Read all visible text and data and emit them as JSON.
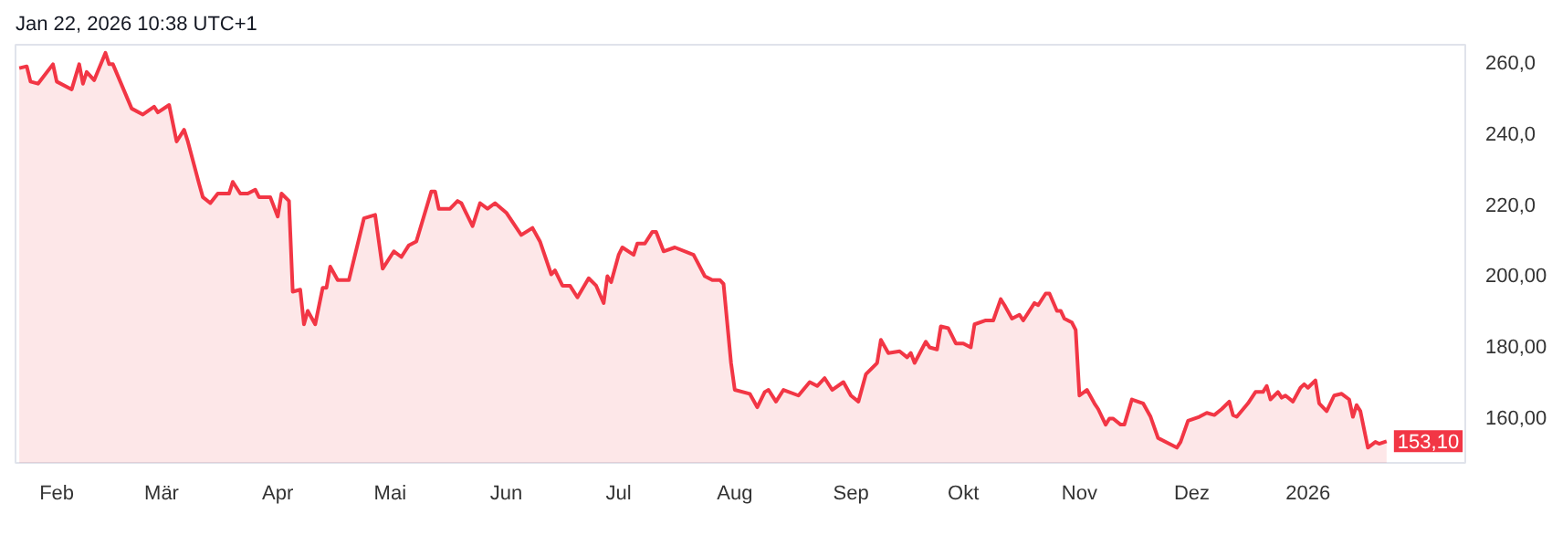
{
  "chart_data": {
    "type": "area",
    "title": "Jan 22, 2026 10:38 UTC+1",
    "x": [
      "2025-01-22",
      "2025-01-24",
      "2025-01-25",
      "2025-01-27",
      "2025-01-31",
      "2025-02-01",
      "2025-02-05",
      "2025-02-07",
      "2025-02-08",
      "2025-02-09",
      "2025-02-11",
      "2025-02-14",
      "2025-02-15",
      "2025-02-16",
      "2025-02-21",
      "2025-02-24",
      "2025-02-27",
      "2025-02-28",
      "2025-03-03",
      "2025-03-05",
      "2025-03-07",
      "2025-03-08",
      "2025-03-11",
      "2025-03-12",
      "2025-03-14",
      "2025-03-16",
      "2025-03-19",
      "2025-03-20",
      "2025-03-22",
      "2025-03-24",
      "2025-03-26",
      "2025-03-27",
      "2025-03-30",
      "2025-04-01",
      "2025-04-02",
      "2025-04-04",
      "2025-04-05",
      "2025-04-07",
      "2025-04-08",
      "2025-04-09",
      "2025-04-11",
      "2025-04-13",
      "2025-04-14",
      "2025-04-15",
      "2025-04-17",
      "2025-04-20",
      "2025-04-24",
      "2025-04-27",
      "2025-04-29",
      "2025-05-02",
      "2025-05-04",
      "2025-05-06",
      "2025-05-08",
      "2025-05-12",
      "2025-05-13",
      "2025-05-14",
      "2025-05-17",
      "2025-05-19",
      "2025-05-20",
      "2025-05-23",
      "2025-05-25",
      "2025-05-27",
      "2025-05-29",
      "2025-06-01",
      "2025-06-05",
      "2025-06-08",
      "2025-06-10",
      "2025-06-13",
      "2025-06-14",
      "2025-06-16",
      "2025-06-18",
      "2025-06-20",
      "2025-06-23",
      "2025-06-25",
      "2025-06-27",
      "2025-06-28",
      "2025-06-29",
      "2025-07-01",
      "2025-07-02",
      "2025-07-05",
      "2025-07-06",
      "2025-07-08",
      "2025-07-10",
      "2025-07-11",
      "2025-07-13",
      "2025-07-16",
      "2025-07-21",
      "2025-07-24",
      "2025-07-26",
      "2025-07-28",
      "2025-07-29",
      "2025-07-31",
      "2025-08-01",
      "2025-08-05",
      "2025-08-07",
      "2025-08-09",
      "2025-08-10",
      "2025-08-12",
      "2025-08-14",
      "2025-08-18",
      "2025-08-21",
      "2025-08-23",
      "2025-08-25",
      "2025-08-27",
      "2025-08-30",
      "2025-09-01",
      "2025-09-03",
      "2025-09-05",
      "2025-09-08",
      "2025-09-09",
      "2025-09-11",
      "2025-09-14",
      "2025-09-16",
      "2025-09-17",
      "2025-09-18",
      "2025-09-21",
      "2025-09-22",
      "2025-09-24",
      "2025-09-25",
      "2025-09-27",
      "2025-09-29",
      "2025-10-01",
      "2025-10-03",
      "2025-10-04",
      "2025-10-07",
      "2025-10-09",
      "2025-10-11",
      "2025-10-12",
      "2025-10-14",
      "2025-10-16",
      "2025-10-17",
      "2025-10-20",
      "2025-10-21",
      "2025-10-23",
      "2025-10-24",
      "2025-10-26",
      "2025-10-27",
      "2025-10-28",
      "2025-10-30",
      "2025-10-31",
      "2025-11-01",
      "2025-11-03",
      "2025-11-05",
      "2025-11-06",
      "2025-11-08",
      "2025-11-09",
      "2025-11-10",
      "2025-11-12",
      "2025-11-13",
      "2025-11-15",
      "2025-11-18",
      "2025-11-20",
      "2025-11-22",
      "2025-11-24",
      "2025-11-27",
      "2025-11-28",
      "2025-11-30",
      "2025-12-03",
      "2025-12-05",
      "2025-12-07",
      "2025-12-09",
      "2025-12-11",
      "2025-12-12",
      "2025-12-13",
      "2025-12-16",
      "2025-12-18",
      "2025-12-20",
      "2025-12-21",
      "2025-12-22",
      "2025-12-24",
      "2025-12-25",
      "2025-12-26",
      "2025-12-28",
      "2025-12-30",
      "2025-12-31",
      "2026-01-01",
      "2026-01-03",
      "2026-01-04",
      "2026-01-06",
      "2026-01-08",
      "2026-01-10",
      "2026-01-12",
      "2026-01-13",
      "2026-01-14",
      "2026-01-15",
      "2026-01-17",
      "2026-01-19",
      "2026-01-20",
      "2026-01-22"
    ],
    "series": [
      {
        "color": "#f23645",
        "values": [
          258.4,
          258.9,
          254.6,
          254,
          259.5,
          254.6,
          252.4,
          259.5,
          254,
          257.3,
          255,
          262.7,
          259.5,
          259.5,
          247,
          245.3,
          247.5,
          245.9,
          248,
          237.7,
          241,
          237.7,
          225.8,
          222,
          220.3,
          223,
          223,
          226.3,
          223,
          223,
          224.1,
          222,
          222,
          216.5,
          223,
          220.9,
          195.3,
          195.9,
          186.1,
          189.9,
          186.1,
          196.4,
          196.4,
          202.4,
          198.6,
          198.6,
          216,
          217,
          201.8,
          206.7,
          205.1,
          208.4,
          209.5,
          223.6,
          223.6,
          218.7,
          218.7,
          220.9,
          220.3,
          213.8,
          220.3,
          218.7,
          220.3,
          217.6,
          211.3,
          213.3,
          209.5,
          200.2,
          201.3,
          197,
          197,
          193.7,
          199.1,
          197,
          192.1,
          199.7,
          198,
          205.7,
          207.8,
          205.7,
          208.9,
          208.9,
          212.2,
          212.2,
          206.7,
          207.8,
          205.7,
          199.7,
          198.6,
          198.6,
          197.5,
          175.2,
          167.6,
          166.5,
          162.7,
          167,
          167.6,
          164.3,
          167.6,
          166,
          169.8,
          168.7,
          170.9,
          167.6,
          169.8,
          166,
          164.3,
          172,
          175.2,
          181.7,
          178,
          178.5,
          176.8,
          178,
          175.2,
          181.2,
          179.6,
          179,
          185.5,
          185,
          180.7,
          180.7,
          179.6,
          186.1,
          187.2,
          187.2,
          193.2,
          191.5,
          187.7,
          188.8,
          187.2,
          192.1,
          191.5,
          194.8,
          194.8,
          189.9,
          189.9,
          187.7,
          186.6,
          184.5,
          166,
          167.6,
          163.8,
          162.2,
          157.8,
          159.5,
          159.5,
          157.8,
          157.8,
          164.9,
          163.8,
          160,
          154,
          152.9,
          151.3,
          152.9,
          158.9,
          160,
          161.1,
          160.5,
          162.2,
          164.3,
          160.5,
          160,
          163.8,
          167,
          167,
          168.7,
          164.9,
          167,
          165.4,
          166,
          164.3,
          168.2,
          169.2,
          168.2,
          170.3,
          163.8,
          161.6,
          166,
          166.5,
          164.9,
          160,
          163.3,
          161.6,
          151.3,
          152.9,
          152.4,
          153.1
        ]
      }
    ],
    "xlim": [
      "2025-01-21",
      "2026-02-12"
    ],
    "xticks": [
      {
        "value": "2025-02-01",
        "label": "Feb"
      },
      {
        "value": "2025-03-01",
        "label": "Mär"
      },
      {
        "value": "2025-04-01",
        "label": "Apr"
      },
      {
        "value": "2025-05-01",
        "label": "Mai"
      },
      {
        "value": "2025-06-01",
        "label": "Jun"
      },
      {
        "value": "2025-07-01",
        "label": "Jul"
      },
      {
        "value": "2025-08-01",
        "label": "Aug"
      },
      {
        "value": "2025-09-01",
        "label": "Sep"
      },
      {
        "value": "2025-10-01",
        "label": "Okt"
      },
      {
        "value": "2025-11-01",
        "label": "Nov"
      },
      {
        "value": "2025-12-01",
        "label": "Dez"
      },
      {
        "value": "2026-01-01",
        "label": "2026"
      }
    ],
    "ylim": [
      147,
      265
    ],
    "yticks": [
      {
        "value": 160,
        "label": "160,00"
      },
      {
        "value": 180,
        "label": "180,00"
      },
      {
        "value": 200,
        "label": "200,00"
      },
      {
        "value": 220,
        "label": "220,0"
      },
      {
        "value": 240,
        "label": "240,0"
      },
      {
        "value": 260,
        "label": "260,0"
      }
    ],
    "annotations": [
      {
        "text": "153,10",
        "x": "2026-01-22",
        "y": 153.1
      }
    ],
    "grid": false
  }
}
